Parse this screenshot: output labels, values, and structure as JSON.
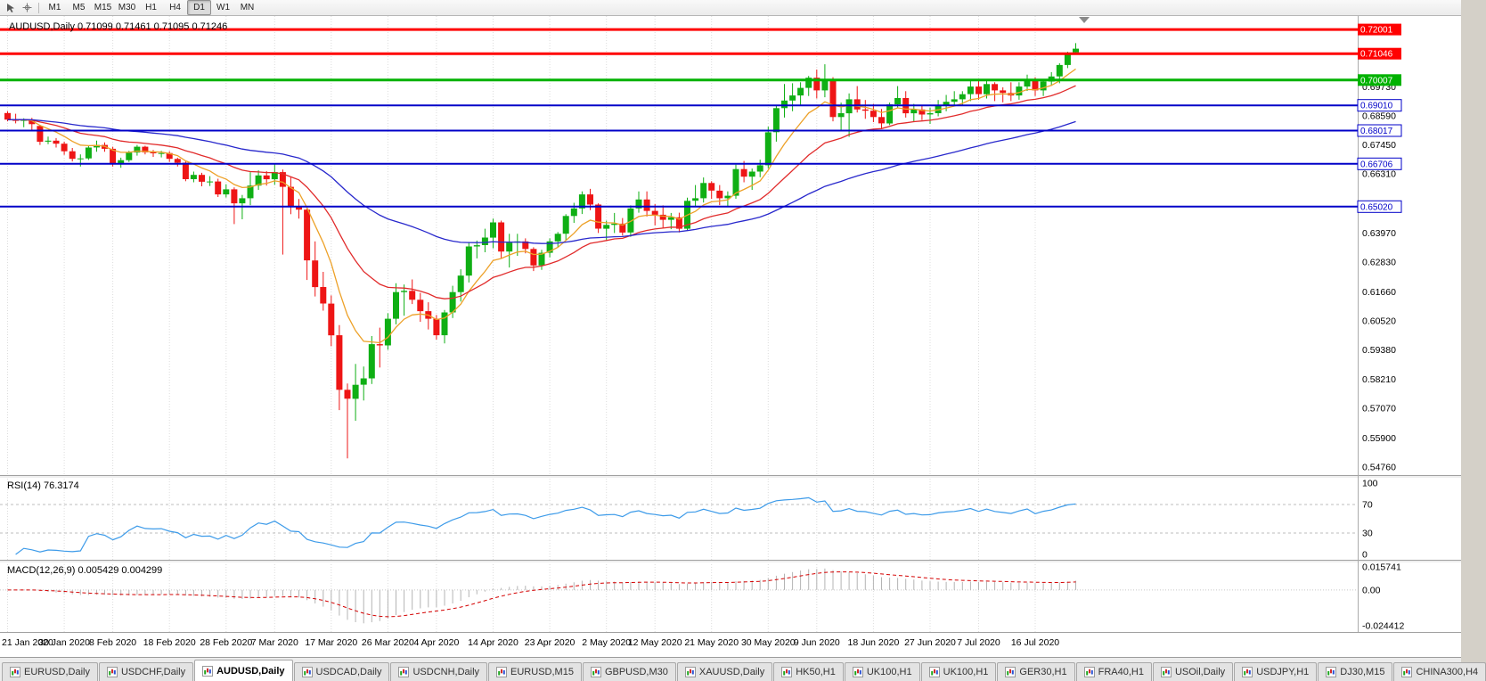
{
  "toolbar": {
    "timeframes": [
      "M1",
      "M5",
      "M15",
      "M30",
      "H1",
      "H4",
      "D1",
      "W1",
      "MN"
    ],
    "active_timeframe": "D1"
  },
  "chart_data": {
    "type": "candlestick",
    "title": "AUDUSD,Daily 0.71099 0.71461 0.71095 0.71246",
    "symbol": "AUDUSD",
    "period": "Daily",
    "ohlc_quote": {
      "open": "0.71099",
      "high": "0.71461",
      "low": "0.71095",
      "close": "0.71246"
    },
    "y_range": [
      0.5444,
      0.7253
    ],
    "price_axis_labels": [
      "0.69730",
      "0.68590",
      "0.67450",
      "0.66310",
      "0.63970",
      "0.62830",
      "0.61660",
      "0.60520",
      "0.59380",
      "0.58210",
      "0.57070",
      "0.55900",
      "0.54760"
    ],
    "x_labels": [
      "21 Jan 2020",
      "30 Jan 2020",
      "8 Feb 2020",
      "18 Feb 2020",
      "28 Feb 2020",
      "7 Mar 2020",
      "17 Mar 2020",
      "26 Mar 2020",
      "4 Apr 2020",
      "14 Apr 2020",
      "23 Apr 2020",
      "2 May 2020",
      "12 May 2020",
      "21 May 2020",
      "30 May 2020",
      "9 Jun 2020",
      "18 Jun 2020",
      "27 Jun 2020",
      "7 Jul 2020",
      "16 Jul 2020"
    ],
    "levels": [
      {
        "price": 0.72001,
        "label": "0.72001",
        "color": "#ff0000",
        "width": 3,
        "badge": "filled"
      },
      {
        "price": 0.71046,
        "label": "0.71046",
        "color": "#ff0000",
        "width": 3,
        "badge": "filled"
      },
      {
        "price": 0.70007,
        "label": "0.70007",
        "color": "#00b200",
        "width": 3,
        "badge": "filled"
      },
      {
        "price": 0.6901,
        "label": "0.69010",
        "color": "#0000c8",
        "width": 2,
        "badge": "outline"
      },
      {
        "price": 0.68017,
        "label": "0.68017",
        "color": "#0000c8",
        "width": 2,
        "badge": "outline"
      },
      {
        "price": 0.66706,
        "label": "0.66706",
        "color": "#0000c8",
        "width": 2,
        "badge": "outline"
      },
      {
        "price": 0.6502,
        "label": "0.65020",
        "color": "#0000c8",
        "width": 2,
        "badge": "outline"
      }
    ],
    "moving_averages": [
      {
        "name": "fast-ma",
        "period": 8,
        "color": "#eda128"
      },
      {
        "name": "mid-ma",
        "period": 21,
        "color": "#e12b2b"
      },
      {
        "name": "slow-ma",
        "period": 55,
        "color": "#2828cc"
      }
    ],
    "candle_colors": {
      "bull": "#0faf14",
      "bear": "#ee1515"
    },
    "indicators": {
      "rsi": {
        "display": "RSI(14) 76.3174",
        "period": 14,
        "value": 76.3174,
        "levels": [
          100,
          70,
          30,
          0
        ],
        "dashed_levels": [
          70,
          30
        ],
        "color": "#3d9be9"
      },
      "macd": {
        "display": "MACD(12,26,9) 0.005429 0.004299",
        "fast": 12,
        "slow": 26,
        "signal": 9,
        "value": 0.005429,
        "signal_value": 0.004299,
        "axis_labels": [
          "0.015741",
          "0.00",
          "-0.024412"
        ],
        "histogram_color": "#b4b4b4",
        "signal_color": "#d40000"
      }
    },
    "candles": [
      [
        0.6871,
        0.6878,
        0.6838,
        0.6845
      ],
      [
        0.6845,
        0.6868,
        0.683,
        0.684
      ],
      [
        0.684,
        0.685,
        0.6815,
        0.6846
      ],
      [
        0.6846,
        0.6852,
        0.6805,
        0.6827
      ],
      [
        0.682,
        0.6824,
        0.6745,
        0.6758
      ],
      [
        0.6758,
        0.6778,
        0.6748,
        0.6762
      ],
      [
        0.6762,
        0.6772,
        0.6735,
        0.675
      ],
      [
        0.675,
        0.6758,
        0.6706,
        0.672
      ],
      [
        0.672,
        0.6733,
        0.668,
        0.669
      ],
      [
        0.669,
        0.6708,
        0.666,
        0.6692
      ],
      [
        0.6692,
        0.674,
        0.6686,
        0.6735
      ],
      [
        0.6735,
        0.6762,
        0.6718,
        0.6745
      ],
      [
        0.6745,
        0.6755,
        0.6718,
        0.673
      ],
      [
        0.673,
        0.6738,
        0.666,
        0.6672
      ],
      [
        0.6672,
        0.6695,
        0.6655,
        0.6685
      ],
      [
        0.6685,
        0.6722,
        0.6678,
        0.6715
      ],
      [
        0.6715,
        0.6745,
        0.6703,
        0.6738
      ],
      [
        0.6738,
        0.6742,
        0.6708,
        0.6716
      ],
      [
        0.6716,
        0.6725,
        0.6698,
        0.6712
      ],
      [
        0.6712,
        0.6722,
        0.6696,
        0.6713
      ],
      [
        0.6713,
        0.672,
        0.6678,
        0.669
      ],
      [
        0.669,
        0.6695,
        0.666,
        0.6675
      ],
      [
        0.6675,
        0.668,
        0.6602,
        0.661
      ],
      [
        0.661,
        0.664,
        0.6598,
        0.6627
      ],
      [
        0.6627,
        0.6635,
        0.6582,
        0.66
      ],
      [
        0.66,
        0.6622,
        0.6583,
        0.6601
      ],
      [
        0.6601,
        0.6612,
        0.654,
        0.655
      ],
      [
        0.655,
        0.659,
        0.6538,
        0.657
      ],
      [
        0.657,
        0.6578,
        0.6433,
        0.6515
      ],
      [
        0.6515,
        0.6548,
        0.6452,
        0.6535
      ],
      [
        0.6535,
        0.6638,
        0.6508,
        0.6585
      ],
      [
        0.6585,
        0.6645,
        0.6568,
        0.6625
      ],
      [
        0.6625,
        0.6642,
        0.6585,
        0.661
      ],
      [
        0.661,
        0.667,
        0.6588,
        0.6638
      ],
      [
        0.6638,
        0.6648,
        0.6313,
        0.658
      ],
      [
        0.658,
        0.6618,
        0.6472,
        0.65
      ],
      [
        0.65,
        0.6532,
        0.6455,
        0.649
      ],
      [
        0.649,
        0.6495,
        0.6213,
        0.629
      ],
      [
        0.629,
        0.6365,
        0.6148,
        0.6185
      ],
      [
        0.6185,
        0.6245,
        0.6092,
        0.612
      ],
      [
        0.612,
        0.6152,
        0.5952,
        0.5995
      ],
      [
        0.5995,
        0.6035,
        0.57,
        0.578
      ],
      [
        0.578,
        0.5805,
        0.551,
        0.5745
      ],
      [
        0.5745,
        0.5882,
        0.5658,
        0.58
      ],
      [
        0.58,
        0.5872,
        0.5738,
        0.5825
      ],
      [
        0.5825,
        0.5992,
        0.5803,
        0.596
      ],
      [
        0.596,
        0.6025,
        0.5868,
        0.5955
      ],
      [
        0.5955,
        0.6082,
        0.5938,
        0.606
      ],
      [
        0.606,
        0.62,
        0.6038,
        0.6165
      ],
      [
        0.6165,
        0.6195,
        0.6072,
        0.617
      ],
      [
        0.617,
        0.6215,
        0.6118,
        0.6135
      ],
      [
        0.6135,
        0.6162,
        0.6048,
        0.609
      ],
      [
        0.609,
        0.6125,
        0.6018,
        0.606
      ],
      [
        0.606,
        0.6075,
        0.5978,
        0.5995
      ],
      [
        0.5995,
        0.6095,
        0.5963,
        0.6085
      ],
      [
        0.6085,
        0.619,
        0.6063,
        0.6165
      ],
      [
        0.6165,
        0.6255,
        0.6128,
        0.623
      ],
      [
        0.623,
        0.6363,
        0.6203,
        0.6345
      ],
      [
        0.6345,
        0.6368,
        0.6298,
        0.635
      ],
      [
        0.635,
        0.6415,
        0.6322,
        0.638
      ],
      [
        0.638,
        0.6455,
        0.6338,
        0.644
      ],
      [
        0.644,
        0.6447,
        0.6298,
        0.6325
      ],
      [
        0.6325,
        0.6395,
        0.6262,
        0.636
      ],
      [
        0.636,
        0.6395,
        0.6308,
        0.6365
      ],
      [
        0.6365,
        0.6377,
        0.6318,
        0.6335
      ],
      [
        0.6335,
        0.6342,
        0.6248,
        0.627
      ],
      [
        0.627,
        0.6332,
        0.6253,
        0.632
      ],
      [
        0.632,
        0.6377,
        0.6302,
        0.6365
      ],
      [
        0.6365,
        0.6402,
        0.6343,
        0.6395
      ],
      [
        0.6395,
        0.6472,
        0.6368,
        0.6465
      ],
      [
        0.6465,
        0.6517,
        0.6438,
        0.6495
      ],
      [
        0.6495,
        0.6562,
        0.6473,
        0.655
      ],
      [
        0.655,
        0.6572,
        0.6488,
        0.651
      ],
      [
        0.651,
        0.6515,
        0.6398,
        0.6415
      ],
      [
        0.6415,
        0.6447,
        0.637,
        0.643
      ],
      [
        0.643,
        0.6477,
        0.6398,
        0.6435
      ],
      [
        0.6435,
        0.6457,
        0.6388,
        0.64
      ],
      [
        0.64,
        0.6507,
        0.6383,
        0.6495
      ],
      [
        0.6495,
        0.6562,
        0.6478,
        0.653
      ],
      [
        0.653,
        0.6562,
        0.6463,
        0.6485
      ],
      [
        0.6485,
        0.6512,
        0.6428,
        0.647
      ],
      [
        0.647,
        0.6507,
        0.6418,
        0.645
      ],
      [
        0.645,
        0.6477,
        0.6413,
        0.646
      ],
      [
        0.646,
        0.6478,
        0.64,
        0.6415
      ],
      [
        0.6415,
        0.6537,
        0.6408,
        0.6525
      ],
      [
        0.6525,
        0.6587,
        0.6503,
        0.6535
      ],
      [
        0.6535,
        0.6617,
        0.6518,
        0.6595
      ],
      [
        0.6595,
        0.6602,
        0.6533,
        0.6565
      ],
      [
        0.6565,
        0.6587,
        0.6508,
        0.6535
      ],
      [
        0.6535,
        0.6562,
        0.6503,
        0.6545
      ],
      [
        0.6545,
        0.6667,
        0.6533,
        0.665
      ],
      [
        0.665,
        0.6682,
        0.6598,
        0.662
      ],
      [
        0.662,
        0.6652,
        0.6568,
        0.664
      ],
      [
        0.664,
        0.6687,
        0.6618,
        0.6665
      ],
      [
        0.6665,
        0.6817,
        0.6653,
        0.6795
      ],
      [
        0.6795,
        0.6902,
        0.6758,
        0.689
      ],
      [
        0.689,
        0.6985,
        0.6853,
        0.692
      ],
      [
        0.692,
        0.6988,
        0.6878,
        0.694
      ],
      [
        0.694,
        0.6992,
        0.6903,
        0.697
      ],
      [
        0.697,
        0.7017,
        0.6938,
        0.701
      ],
      [
        0.701,
        0.7042,
        0.6928,
        0.696
      ],
      [
        0.696,
        0.7063,
        0.6933,
        0.7
      ],
      [
        0.7,
        0.7012,
        0.6838,
        0.6855
      ],
      [
        0.6855,
        0.6912,
        0.6798,
        0.687
      ],
      [
        0.687,
        0.6948,
        0.6777,
        0.6925
      ],
      [
        0.6925,
        0.6977,
        0.6873,
        0.6885
      ],
      [
        0.6885,
        0.6922,
        0.6848,
        0.688
      ],
      [
        0.688,
        0.6907,
        0.6835,
        0.6855
      ],
      [
        0.6855,
        0.6887,
        0.6808,
        0.683
      ],
      [
        0.683,
        0.6912,
        0.6823,
        0.6905
      ],
      [
        0.6905,
        0.6977,
        0.6893,
        0.693
      ],
      [
        0.693,
        0.6957,
        0.6853,
        0.687
      ],
      [
        0.687,
        0.6907,
        0.6838,
        0.6885
      ],
      [
        0.6885,
        0.6902,
        0.6843,
        0.6865
      ],
      [
        0.6865,
        0.6892,
        0.6828,
        0.687
      ],
      [
        0.687,
        0.6922,
        0.6858,
        0.69
      ],
      [
        0.69,
        0.6942,
        0.6878,
        0.6915
      ],
      [
        0.6915,
        0.6957,
        0.6898,
        0.6925
      ],
      [
        0.6925,
        0.6957,
        0.6903,
        0.6945
      ],
      [
        0.6945,
        0.6997,
        0.6918,
        0.6975
      ],
      [
        0.6975,
        0.6997,
        0.6923,
        0.6945
      ],
      [
        0.6945,
        0.7002,
        0.6928,
        0.6985
      ],
      [
        0.6985,
        0.6992,
        0.6918,
        0.696
      ],
      [
        0.696,
        0.6972,
        0.6913,
        0.695
      ],
      [
        0.695,
        0.6992,
        0.6918,
        0.694
      ],
      [
        0.694,
        0.6992,
        0.6923,
        0.6975
      ],
      [
        0.6975,
        0.7022,
        0.6958,
        0.7005
      ],
      [
        0.7005,
        0.7012,
        0.6938,
        0.696
      ],
      [
        0.696,
        0.7002,
        0.6938,
        0.6995
      ],
      [
        0.6995,
        0.7032,
        0.6978,
        0.7015
      ],
      [
        0.7015,
        0.7067,
        0.6988,
        0.706
      ],
      [
        0.706,
        0.7112,
        0.7048,
        0.7105
      ],
      [
        0.71099,
        0.71461,
        0.71095,
        0.71246
      ]
    ]
  },
  "tabbar": {
    "active_index": 2,
    "tabs": [
      "EURUSD,Daily",
      "USDCHF,Daily",
      "AUDUSD,Daily",
      "USDCAD,Daily",
      "USDCNH,Daily",
      "EURUSD,M15",
      "GBPUSD,M30",
      "XAUUSD,Daily",
      "HK50,H1",
      "UK100,H1",
      "UK100,H1",
      "GER30,H1",
      "FRA40,H1",
      "USOil,Daily",
      "USDJPY,H1",
      "DJ30,M15",
      "CHINA300,H4"
    ]
  }
}
